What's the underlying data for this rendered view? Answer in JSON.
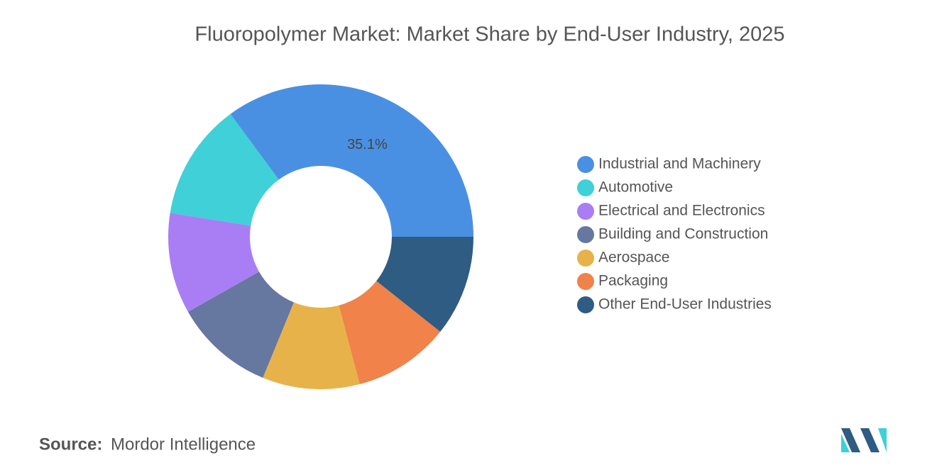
{
  "chart_data": {
    "type": "donut",
    "title": "Fluoropolymer Market: Market Share by End-User Industry, 2025",
    "categories": [
      "Industrial and Machinery",
      "Automotive",
      "Electrical and Electronics",
      "Building and Construction",
      "Aerospace",
      "Packaging",
      "Other End-User Industries"
    ],
    "values": [
      35.1,
      12.4,
      10.7,
      10.6,
      10.3,
      10.2,
      10.7
    ],
    "value_labels": [
      "35.1%",
      null,
      null,
      null,
      null,
      null,
      null
    ],
    "colors": [
      "#4a90e2",
      "#3fd0d8",
      "#a97ef5",
      "#6677a0",
      "#e8b24a",
      "#f0824a",
      "#2e5c82"
    ],
    "legend": "right",
    "source_label": "Source:",
    "source": "Mordor Intelligence"
  }
}
